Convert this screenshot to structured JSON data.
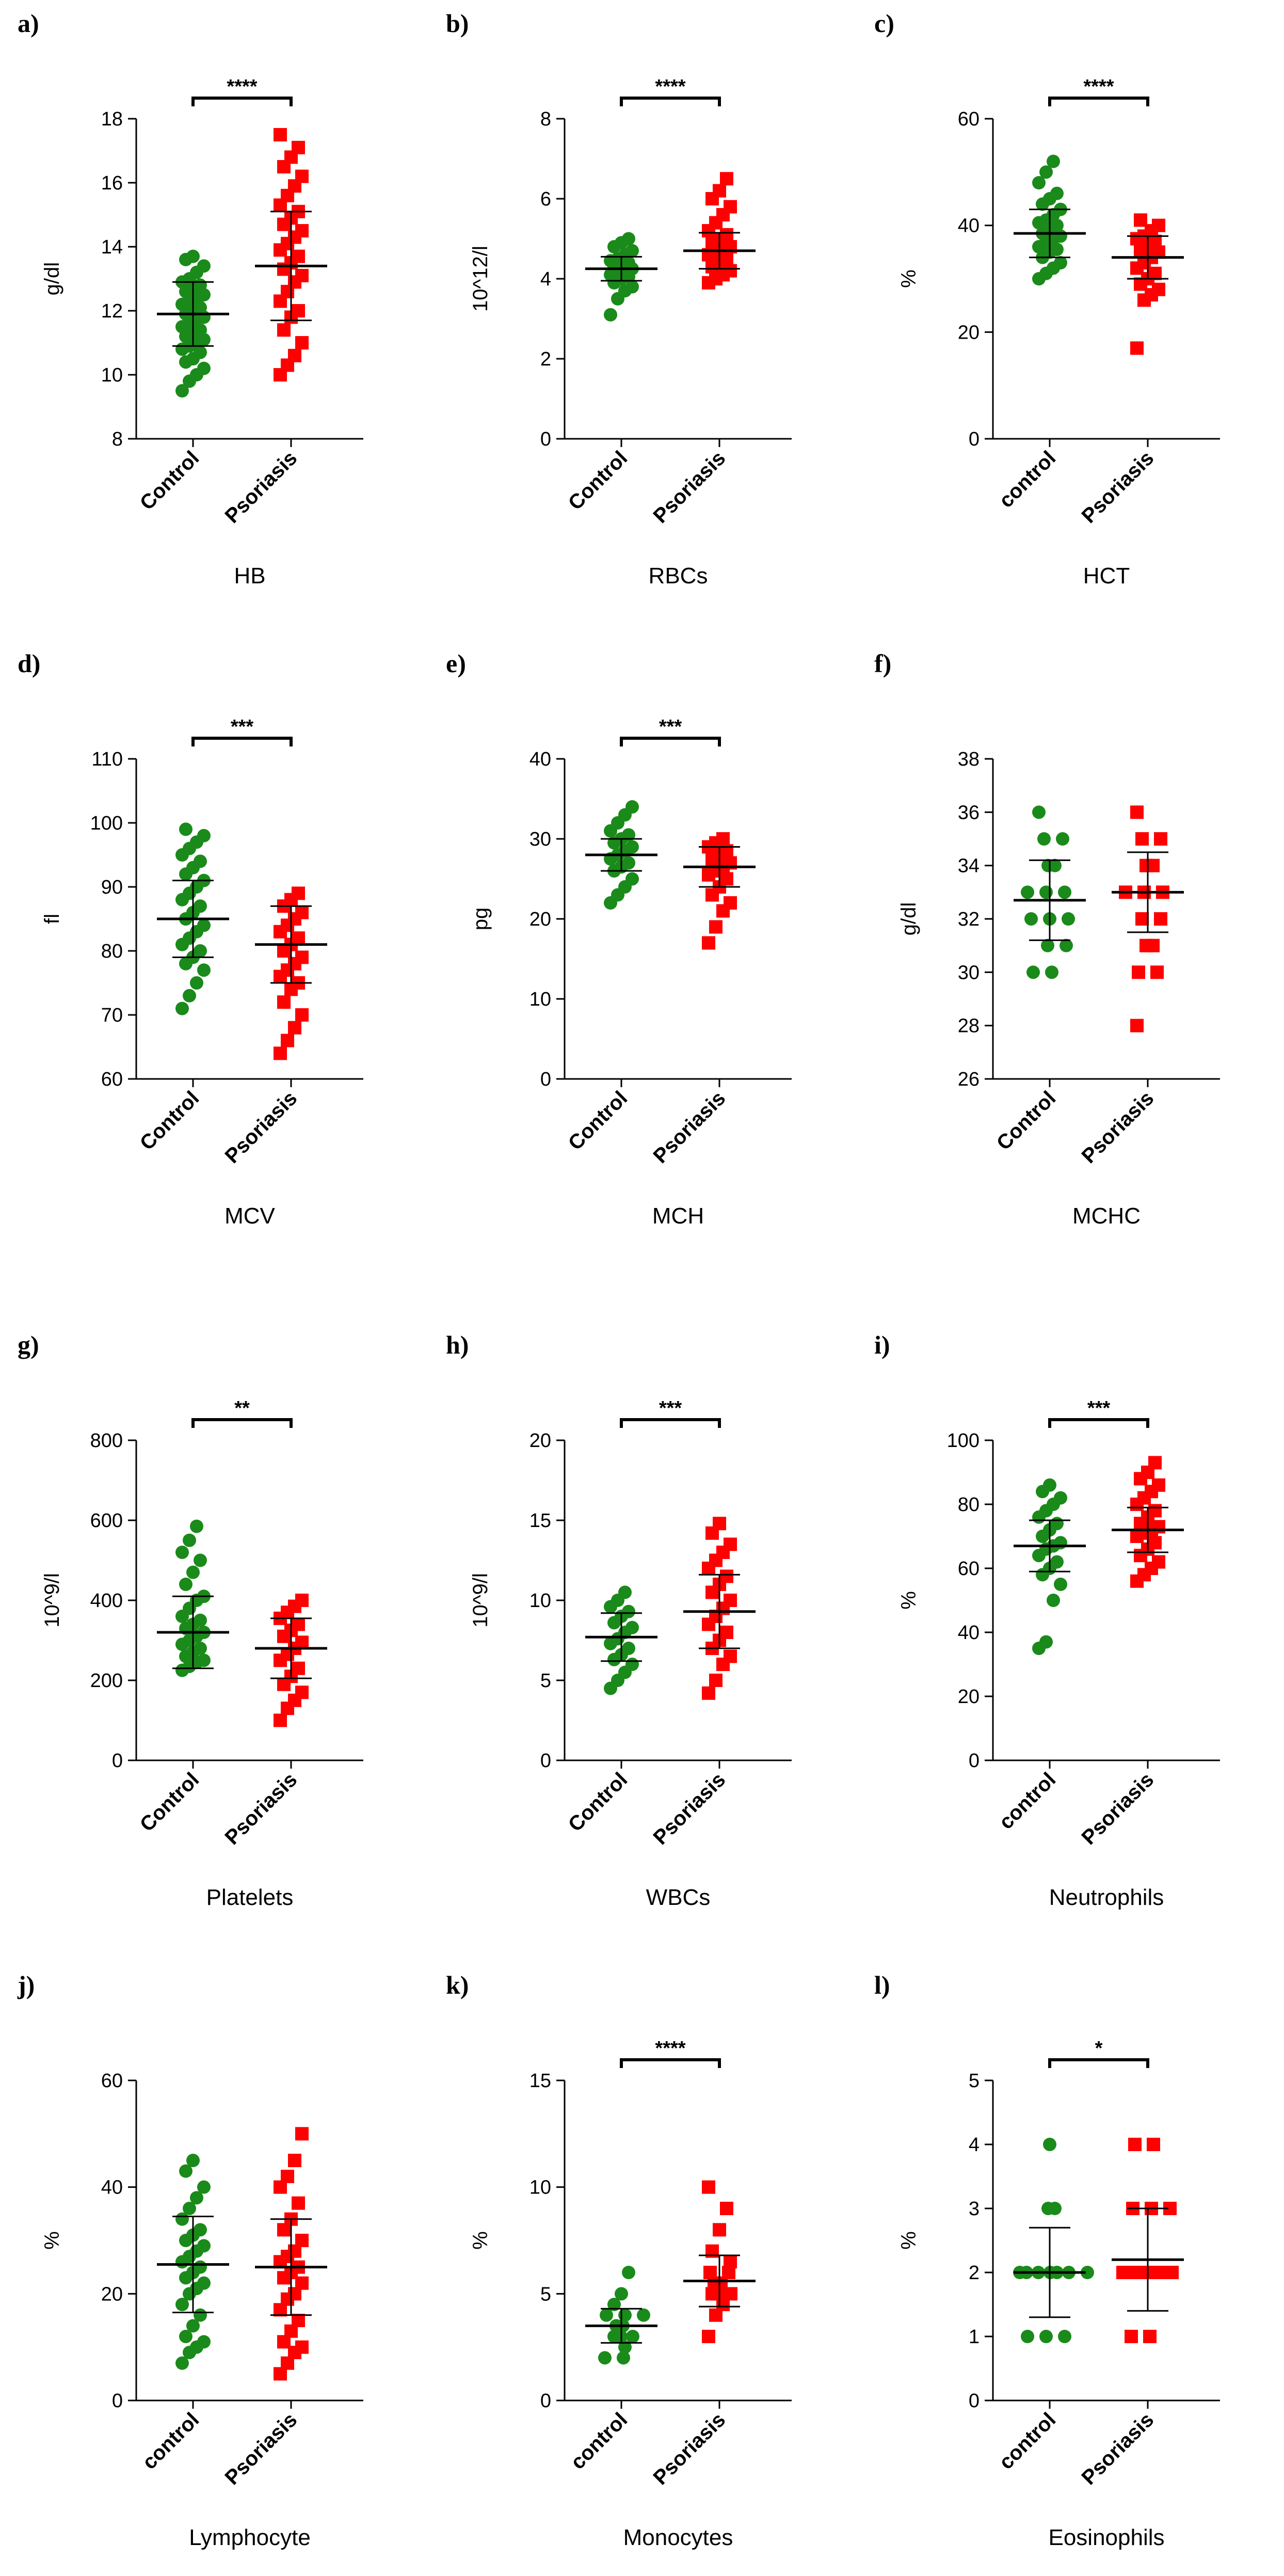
{
  "colors": {
    "control": "#1a8a1a",
    "psoriasis": "#ff0000",
    "axis": "#000000",
    "errorbar": "#000000"
  },
  "chart_data": [
    {
      "type": "scatter",
      "letter": "a)",
      "title": "HB",
      "ylabel": "g/dl",
      "ylim": [
        8,
        18
      ],
      "yticks": [
        8,
        10,
        12,
        14,
        16,
        18
      ],
      "categories": [
        "Control",
        "Psoriasis"
      ],
      "significance": "****",
      "series": [
        {
          "name": "Control",
          "mean": 11.9,
          "sd": 1.0,
          "values": [
            9.5,
            9.8,
            10.0,
            10.2,
            10.4,
            10.5,
            10.7,
            10.8,
            10.9,
            11.0,
            11.1,
            11.2,
            11.3,
            11.4,
            11.5,
            11.6,
            11.7,
            11.8,
            11.9,
            12.0,
            12.1,
            12.2,
            12.3,
            12.4,
            12.5,
            12.6,
            12.7,
            12.8,
            12.9,
            13.0,
            13.2,
            13.4,
            13.6,
            13.7
          ]
        },
        {
          "name": "Psoriasis",
          "mean": 13.4,
          "sd": 1.7,
          "values": [
            10.0,
            10.3,
            10.6,
            11.0,
            11.4,
            11.8,
            12.0,
            12.3,
            12.6,
            12.9,
            13.1,
            13.3,
            13.5,
            13.7,
            13.9,
            14.1,
            14.3,
            14.5,
            14.7,
            14.9,
            15.1,
            15.3,
            15.6,
            15.9,
            16.2,
            16.5,
            16.8,
            17.1,
            17.5
          ]
        }
      ]
    },
    {
      "type": "scatter",
      "letter": "b)",
      "title": "RBCs",
      "ylabel": "10^12/l",
      "ylim": [
        0,
        8
      ],
      "yticks": [
        0,
        2,
        4,
        6,
        8
      ],
      "categories": [
        "Control",
        "Psoriasis"
      ],
      "significance": "****",
      "series": [
        {
          "name": "Control",
          "mean": 4.25,
          "sd": 0.3,
          "values": [
            3.1,
            3.5,
            3.7,
            3.8,
            3.9,
            4.0,
            4.05,
            4.1,
            4.15,
            4.2,
            4.25,
            4.3,
            4.35,
            4.4,
            4.45,
            4.5,
            4.6,
            4.7,
            4.8,
            4.9,
            5.0
          ]
        },
        {
          "name": "Psoriasis",
          "mean": 4.7,
          "sd": 0.45,
          "values": [
            3.9,
            4.0,
            4.1,
            4.2,
            4.3,
            4.4,
            4.5,
            4.6,
            4.7,
            4.75,
            4.8,
            4.9,
            5.0,
            5.1,
            5.2,
            5.4,
            5.6,
            5.8,
            6.0,
            6.2,
            6.5
          ]
        }
      ]
    },
    {
      "type": "scatter",
      "letter": "c)",
      "title": "HCT",
      "ylabel": "%",
      "ylim": [
        0,
        60
      ],
      "yticks": [
        0,
        20,
        40,
        60
      ],
      "categories": [
        "control",
        "Psoriasis"
      ],
      "significance": "****",
      "series": [
        {
          "name": "control",
          "mean": 38.5,
          "sd": 4.5,
          "values": [
            30,
            31,
            32,
            33,
            34,
            35,
            35.5,
            36,
            37,
            37.5,
            38,
            38.5,
            39,
            40,
            40.5,
            41,
            42,
            43,
            44,
            45,
            46,
            48,
            50,
            52
          ]
        },
        {
          "name": "Psoriasis",
          "mean": 34,
          "sd": 4,
          "values": [
            17,
            26,
            27,
            28,
            29,
            30,
            31,
            32,
            33,
            34,
            35,
            35.5,
            36,
            37,
            37.5,
            38,
            39,
            40,
            41
          ]
        }
      ]
    },
    {
      "type": "scatter",
      "letter": "d)",
      "title": "MCV",
      "ylabel": "fl",
      "ylim": [
        60,
        110
      ],
      "yticks": [
        60,
        70,
        80,
        90,
        100,
        110
      ],
      "categories": [
        "Control",
        "Psoriasis"
      ],
      "significance": "***",
      "series": [
        {
          "name": "Control",
          "mean": 85,
          "sd": 6,
          "values": [
            71,
            73,
            75,
            77,
            78,
            79,
            80,
            81,
            82,
            83,
            84,
            85,
            86,
            87,
            88,
            89,
            90,
            91,
            92,
            93,
            94,
            95,
            96,
            97,
            98,
            99
          ]
        },
        {
          "name": "Psoriasis",
          "mean": 81,
          "sd": 6,
          "values": [
            64,
            66,
            68,
            70,
            72,
            74,
            75,
            76,
            77,
            78,
            79,
            80,
            81,
            82,
            83,
            84,
            85,
            86,
            87,
            88,
            89
          ]
        }
      ]
    },
    {
      "type": "scatter",
      "letter": "e)",
      "title": "MCH",
      "ylabel": "pg",
      "ylim": [
        0,
        40
      ],
      "yticks": [
        0,
        10,
        20,
        30,
        40
      ],
      "categories": [
        "Control",
        "Psoriasis"
      ],
      "significance": "***",
      "series": [
        {
          "name": "Control",
          "mean": 28,
          "sd": 2,
          "values": [
            22,
            23,
            24,
            25,
            26,
            26.5,
            27,
            27.5,
            28,
            28.5,
            29,
            29.5,
            30,
            30.5,
            31,
            32,
            33,
            34
          ]
        },
        {
          "name": "Psoriasis",
          "mean": 26.5,
          "sd": 2.5,
          "values": [
            17,
            19,
            21,
            22,
            23,
            24,
            25,
            25.5,
            26,
            26.5,
            27,
            27.5,
            28,
            28.5,
            29,
            29.5,
            30
          ]
        }
      ]
    },
    {
      "type": "scatter",
      "letter": "f)",
      "title": "MCHC",
      "ylabel": "g/dl",
      "ylim": [
        26,
        38
      ],
      "yticks": [
        26,
        28,
        30,
        32,
        34,
        36,
        38
      ],
      "categories": [
        "Control",
        "Psoriasis"
      ],
      "significance": "",
      "series": [
        {
          "name": "Control",
          "mean": 32.7,
          "sd": 1.5,
          "values": [
            30,
            30,
            31,
            31,
            32,
            32,
            32,
            33,
            33,
            33,
            34,
            34,
            35,
            35,
            36
          ]
        },
        {
          "name": "Psoriasis",
          "mean": 33,
          "sd": 1.5,
          "values": [
            28,
            30,
            30,
            31,
            31,
            32,
            32,
            33,
            33,
            33,
            34,
            34,
            35,
            35,
            36
          ]
        }
      ]
    },
    {
      "type": "scatter",
      "letter": "g)",
      "title": "Platelets",
      "ylabel": "10^9/l",
      "ylim": [
        0,
        800
      ],
      "yticks": [
        0,
        200,
        400,
        600,
        800
      ],
      "categories": [
        "Control",
        "Psoriasis"
      ],
      "significance": "**",
      "series": [
        {
          "name": "Control",
          "mean": 320,
          "sd": 90,
          "values": [
            225,
            235,
            245,
            250,
            260,
            270,
            280,
            290,
            300,
            310,
            320,
            330,
            340,
            350,
            360,
            380,
            400,
            410,
            440,
            470,
            500,
            520,
            550,
            585
          ]
        },
        {
          "name": "Psoriasis",
          "mean": 280,
          "sd": 75,
          "values": [
            100,
            130,
            150,
            170,
            190,
            210,
            230,
            250,
            265,
            280,
            295,
            310,
            325,
            340,
            355,
            370,
            385,
            400
          ]
        }
      ]
    },
    {
      "type": "scatter",
      "letter": "h)",
      "title": "WBCs",
      "ylabel": "10^9/l",
      "ylim": [
        0,
        20
      ],
      "yticks": [
        0,
        5,
        10,
        15,
        20
      ],
      "categories": [
        "Control",
        "Psoriasis"
      ],
      "significance": "***",
      "series": [
        {
          "name": "Control",
          "mean": 7.7,
          "sd": 1.5,
          "values": [
            4.5,
            5.0,
            5.5,
            6.0,
            6.3,
            6.6,
            7.0,
            7.3,
            7.6,
            8.0,
            8.3,
            8.6,
            9.0,
            9.3,
            9.6,
            10.0,
            10.5
          ]
        },
        {
          "name": "Psoriasis",
          "mean": 9.3,
          "sd": 2.3,
          "values": [
            4.2,
            5.0,
            6.0,
            6.5,
            7.0,
            7.5,
            8.0,
            8.5,
            9.0,
            9.5,
            10.0,
            10.5,
            11.0,
            11.5,
            12.0,
            12.5,
            13.0,
            13.5,
            14.2,
            14.8
          ]
        }
      ]
    },
    {
      "type": "scatter",
      "letter": "i)",
      "title": "Neutrophils",
      "ylabel": "%",
      "ylim": [
        0,
        100
      ],
      "yticks": [
        0,
        20,
        40,
        60,
        80,
        100
      ],
      "categories": [
        "control",
        "Psoriasis"
      ],
      "significance": "***",
      "series": [
        {
          "name": "control",
          "mean": 67,
          "sd": 8,
          "values": [
            35,
            37,
            50,
            55,
            58,
            60,
            62,
            64,
            66,
            67,
            68,
            70,
            72,
            74,
            76,
            78,
            80,
            82,
            84,
            86
          ]
        },
        {
          "name": "Psoriasis",
          "mean": 72,
          "sd": 7,
          "values": [
            56,
            58,
            60,
            62,
            64,
            66,
            68,
            70,
            71,
            72,
            73,
            74,
            76,
            78,
            80,
            82,
            84,
            86,
            88,
            90,
            93
          ]
        }
      ]
    },
    {
      "type": "scatter",
      "letter": "j)",
      "title": "Lymphocyte",
      "ylabel": "%",
      "ylim": [
        0,
        60
      ],
      "yticks": [
        0,
        20,
        40,
        60
      ],
      "categories": [
        "control",
        "Psoriasis"
      ],
      "significance": "",
      "series": [
        {
          "name": "control",
          "mean": 25.5,
          "sd": 9,
          "values": [
            7,
            9,
            10,
            11,
            12,
            14,
            16,
            18,
            20,
            21,
            22,
            23,
            24,
            25,
            26,
            27,
            28,
            29,
            30,
            31,
            32,
            34,
            36,
            38,
            40,
            43,
            45
          ]
        },
        {
          "name": "Psoriasis",
          "mean": 25,
          "sd": 9,
          "values": [
            5,
            7,
            9,
            10,
            11,
            13,
            15,
            17,
            19,
            20,
            22,
            23,
            24,
            25,
            26,
            27,
            28,
            30,
            32,
            34,
            37,
            40,
            42,
            45,
            50
          ]
        }
      ]
    },
    {
      "type": "scatter",
      "letter": "k)",
      "title": "Monocytes",
      "ylabel": "%",
      "ylim": [
        0,
        15
      ],
      "yticks": [
        0,
        5,
        10,
        15
      ],
      "categories": [
        "control",
        "Psoriasis"
      ],
      "significance": "****",
      "series": [
        {
          "name": "control",
          "mean": 3.5,
          "sd": 0.8,
          "values": [
            2,
            2,
            2.5,
            3,
            3,
            3,
            3.5,
            3.5,
            4,
            4,
            4,
            4.5,
            5,
            6
          ]
        },
        {
          "name": "Psoriasis",
          "mean": 5.6,
          "sd": 1.2,
          "values": [
            3,
            4,
            4.5,
            5,
            5,
            5,
            5.5,
            5.5,
            6,
            6,
            6.5,
            7,
            8,
            9,
            10
          ]
        }
      ]
    },
    {
      "type": "scatter",
      "letter": "l)",
      "title": "Eosinophils",
      "ylabel": "%",
      "ylim": [
        0,
        5
      ],
      "yticks": [
        0,
        1,
        2,
        3,
        4,
        5
      ],
      "categories": [
        "control",
        "Psoriasis"
      ],
      "significance": "*",
      "series": [
        {
          "name": "control",
          "mean": 2.0,
          "sd": 0.7,
          "values": [
            1,
            1,
            1,
            2,
            2,
            2,
            2,
            2,
            2,
            2,
            3,
            3,
            4
          ]
        },
        {
          "name": "Psoriasis",
          "mean": 2.2,
          "sd": 0.8,
          "values": [
            1,
            1,
            2,
            2,
            2,
            2,
            2,
            2,
            3,
            3,
            3,
            4,
            4
          ]
        }
      ]
    }
  ]
}
